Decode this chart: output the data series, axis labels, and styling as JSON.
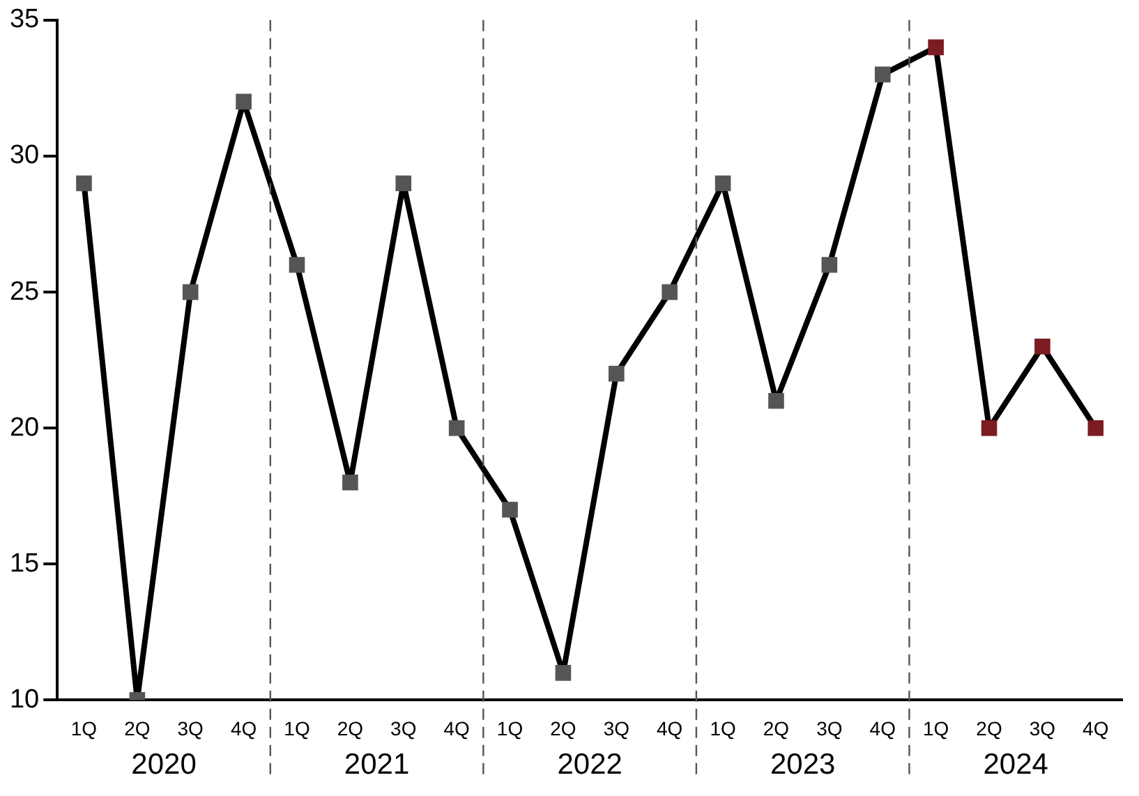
{
  "chart_data": {
    "type": "line",
    "categories": [
      "1Q",
      "2Q",
      "3Q",
      "4Q",
      "1Q",
      "2Q",
      "3Q",
      "4Q",
      "1Q",
      "2Q",
      "3Q",
      "4Q",
      "1Q",
      "2Q",
      "3Q",
      "4Q",
      "1Q",
      "2Q",
      "3Q",
      "4Q"
    ],
    "values": [
      29,
      10,
      25,
      32,
      26,
      18,
      29,
      20,
      17,
      11,
      22,
      25,
      29,
      21,
      26,
      33,
      34,
      20,
      23,
      20
    ],
    "color": "#000000",
    "colors": [
      "#555555",
      "#555555",
      "#555555",
      "#555555",
      "#555555",
      "#555555",
      "#555555",
      "#555555",
      "#555555",
      "#555555",
      "#555555",
      "#555555",
      "#555555",
      "#555555",
      "#555555",
      "#555555",
      "#7b1c22",
      "#7b1c22",
      "#7b1c22",
      "#7b1c22"
    ],
    "annotations": [
      "2020",
      "2021",
      "2022",
      "2023",
      "2024"
    ],
    "ylim": [
      10,
      35
    ],
    "yticks": [
      10,
      15,
      20,
      25,
      30,
      35
    ],
    "marker": "square",
    "line_style": "solid",
    "grid": false,
    "legend": false
  }
}
